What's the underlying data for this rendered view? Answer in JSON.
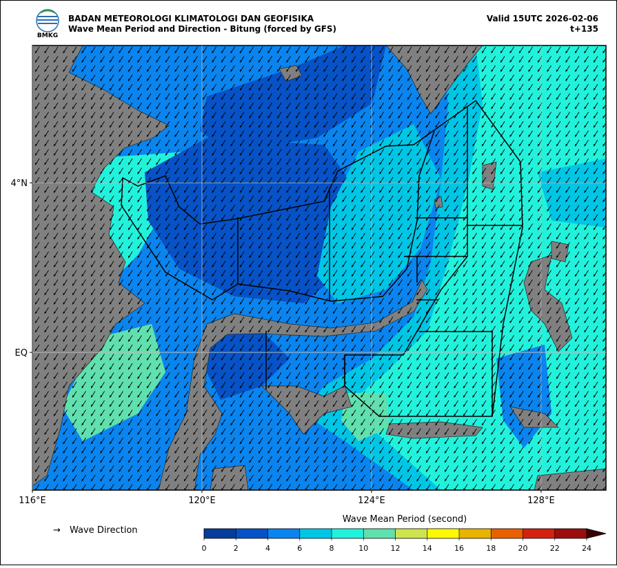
{
  "header": {
    "logo_text": "BMKG",
    "title": "BADAN METEOROLOGI KLIMATOLOGI DAN GEOFISIKA",
    "subtitle": "Wave Mean Period and Direction - Bitung (forced by GFS)",
    "valid": "Valid 15UTC 2026-02-06",
    "lead": "t+135"
  },
  "map": {
    "xlim": [
      116,
      129.53
    ],
    "ylim": [
      -3.25,
      7.24
    ],
    "xticks": [
      {
        "value": 116,
        "label": "116°E"
      },
      {
        "value": 120,
        "label": "120°E"
      },
      {
        "value": 124,
        "label": "124°E"
      },
      {
        "value": 128,
        "label": "128°E"
      }
    ],
    "yticks": [
      {
        "value": 4,
        "label": "4°N"
      },
      {
        "value": 0,
        "label": "EQ"
      }
    ]
  },
  "legend": {
    "label": "Wave Direction"
  },
  "colorbar": {
    "title": "Wave Mean Period (second)",
    "ticks": [
      0,
      2,
      4,
      6,
      8,
      10,
      12,
      14,
      16,
      18,
      20,
      22,
      24
    ],
    "colors": [
      "#063c9c",
      "#0652c6",
      "#0a84ee",
      "#00c6e6",
      "#22f2dc",
      "#60e0ae",
      "#cfe34e",
      "#fff800",
      "#e8b400",
      "#ea5f00",
      "#d4200e",
      "#9c0e0e"
    ],
    "over_color": "#3a0000"
  }
}
